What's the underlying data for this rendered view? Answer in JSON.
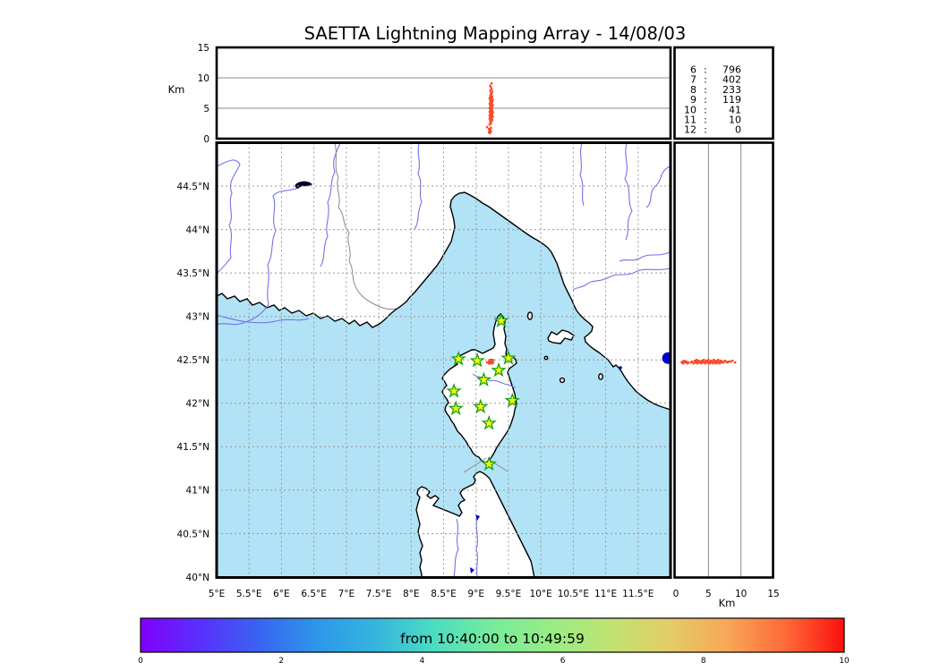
{
  "title": "SAETTA Lightning Mapping Array - 14/08/03",
  "colors": {
    "sea": "#b2e2f5",
    "land": "#ffffff",
    "coast": "#000000",
    "river": "#7373e8",
    "admin_border": "#8a8a8a",
    "grid_dashed": "#999999",
    "grid_solid": "#8c8c8c",
    "flash": "#f94a2b",
    "lake": "#0000cc",
    "star_fill": "#fdfd00",
    "star_edge": "#15a015",
    "highlight": "#e60000"
  },
  "altitude_panel": {
    "ylabel": "Km",
    "ticks": [
      {
        "v": 0,
        "label": "0"
      },
      {
        "v": 5,
        "label": "5"
      },
      {
        "v": 10,
        "label": "10"
      },
      {
        "v": 15,
        "label": "15"
      }
    ],
    "gridlines": [
      5,
      10
    ],
    "range": [
      0,
      15
    ]
  },
  "right_panel": {
    "xlabel": "Km",
    "ticks": [
      {
        "v": 0,
        "label": "0"
      },
      {
        "v": 5,
        "label": "5"
      },
      {
        "v": 10,
        "label": "10"
      },
      {
        "v": 15,
        "label": "15"
      }
    ],
    "gridlines": [
      5,
      10
    ],
    "range": [
      0,
      15
    ]
  },
  "stats": {
    "rows": [
      {
        "level": "6",
        "count": "796",
        "highlight": false
      },
      {
        "level": "7",
        "count": "402",
        "highlight": true
      },
      {
        "level": "8",
        "count": "233",
        "highlight": false
      },
      {
        "level": "9",
        "count": "119",
        "highlight": false
      },
      {
        "level": "10",
        "count": "41",
        "highlight": false
      },
      {
        "level": "11",
        "count": "10",
        "highlight": false
      },
      {
        "level": "12",
        "count": "0",
        "highlight": false
      }
    ]
  },
  "map": {
    "lon_range": [
      5,
      12
    ],
    "lat_range": [
      40,
      45
    ],
    "lon_ticks": [
      {
        "v": 5,
        "label": "5°E"
      },
      {
        "v": 5.5,
        "label": "5.5°E"
      },
      {
        "v": 6,
        "label": "6°E"
      },
      {
        "v": 6.5,
        "label": "6.5°E"
      },
      {
        "v": 7,
        "label": "7°E"
      },
      {
        "v": 7.5,
        "label": "7.5°E"
      },
      {
        "v": 8,
        "label": "8°E"
      },
      {
        "v": 8.5,
        "label": "8.5°E"
      },
      {
        "v": 9,
        "label": "9°E"
      },
      {
        "v": 9.5,
        "label": "9.5°E"
      },
      {
        "v": 10,
        "label": "10°E"
      },
      {
        "v": 10.5,
        "label": "10.5°E"
      },
      {
        "v": 11,
        "label": "11°E"
      },
      {
        "v": 11.5,
        "label": "11.5°E"
      }
    ],
    "lat_ticks": [
      {
        "v": 40,
        "label": "40°N"
      },
      {
        "v": 40.5,
        "label": "40.5°N"
      },
      {
        "v": 41,
        "label": "41°N"
      },
      {
        "v": 41.5,
        "label": "41.5°N"
      },
      {
        "v": 42,
        "label": "42°N"
      },
      {
        "v": 42.5,
        "label": "42.5°N"
      },
      {
        "v": 43,
        "label": "43°N"
      },
      {
        "v": 43.5,
        "label": "43.5°N"
      },
      {
        "v": 44,
        "label": "44°N"
      },
      {
        "v": 44.5,
        "label": "44.5°N"
      }
    ],
    "stations": [
      {
        "lon": 9.39,
        "lat": 42.95
      },
      {
        "lon": 8.73,
        "lat": 42.51
      },
      {
        "lon": 9.02,
        "lat": 42.49
      },
      {
        "lon": 9.5,
        "lat": 42.52
      },
      {
        "lon": 9.35,
        "lat": 42.38
      },
      {
        "lon": 9.12,
        "lat": 42.27
      },
      {
        "lon": 8.66,
        "lat": 42.14
      },
      {
        "lon": 9.56,
        "lat": 42.03
      },
      {
        "lon": 9.07,
        "lat": 41.96
      },
      {
        "lon": 8.69,
        "lat": 41.94
      },
      {
        "lon": 9.2,
        "lat": 41.77
      },
      {
        "lon": 9.2,
        "lat": 41.3
      }
    ],
    "lake": {
      "lon": 11.96,
      "lat": 42.52
    }
  },
  "lightning_points": [
    [
      9.21,
      42.47,
      2.3
    ],
    [
      9.23,
      42.48,
      2.5
    ],
    [
      9.22,
      42.46,
      2.7
    ],
    [
      9.24,
      42.49,
      2.9
    ],
    [
      9.22,
      42.47,
      3.0
    ],
    [
      9.25,
      42.48,
      3.1
    ],
    [
      9.23,
      42.5,
      3.2
    ],
    [
      9.21,
      42.46,
      3.3
    ],
    [
      9.24,
      42.47,
      3.4
    ],
    [
      9.22,
      42.49,
      3.5
    ],
    [
      9.26,
      42.48,
      3.6
    ],
    [
      9.23,
      42.47,
      3.7
    ],
    [
      9.21,
      42.48,
      3.8
    ],
    [
      9.25,
      42.46,
      3.9
    ],
    [
      9.23,
      42.49,
      4.0
    ],
    [
      9.22,
      42.47,
      4.1
    ],
    [
      9.24,
      42.48,
      4.2
    ],
    [
      9.26,
      42.5,
      4.3
    ],
    [
      9.21,
      42.47,
      4.4
    ],
    [
      9.23,
      42.46,
      4.5
    ],
    [
      9.25,
      42.48,
      4.6
    ],
    [
      9.22,
      42.49,
      4.7
    ],
    [
      9.24,
      42.47,
      4.8
    ],
    [
      9.23,
      42.48,
      4.9
    ],
    [
      9.21,
      42.5,
      5.0
    ],
    [
      9.25,
      42.47,
      5.1
    ],
    [
      9.23,
      42.46,
      5.2
    ],
    [
      9.22,
      42.48,
      5.3
    ],
    [
      9.24,
      42.49,
      5.4
    ],
    [
      9.26,
      42.47,
      5.5
    ],
    [
      9.23,
      42.48,
      5.6
    ],
    [
      9.21,
      42.46,
      5.7
    ],
    [
      9.24,
      42.5,
      5.8
    ],
    [
      9.22,
      42.47,
      5.9
    ],
    [
      9.25,
      42.48,
      6.0
    ],
    [
      9.23,
      42.49,
      6.1
    ],
    [
      9.22,
      42.46,
      6.2
    ],
    [
      9.24,
      42.48,
      6.3
    ],
    [
      9.26,
      42.47,
      6.4
    ],
    [
      9.23,
      42.5,
      6.5
    ],
    [
      9.21,
      42.48,
      6.6
    ],
    [
      9.24,
      42.46,
      6.7
    ],
    [
      9.22,
      42.48,
      6.8
    ],
    [
      9.25,
      42.49,
      6.9
    ],
    [
      9.23,
      42.47,
      7.0
    ],
    [
      9.22,
      42.48,
      7.1
    ],
    [
      9.24,
      42.47,
      7.3
    ],
    [
      9.23,
      42.49,
      7.5
    ],
    [
      9.25,
      42.48,
      7.7
    ],
    [
      9.22,
      42.47,
      7.9
    ],
    [
      9.24,
      42.48,
      8.1
    ],
    [
      9.23,
      42.48,
      8.4
    ],
    [
      9.22,
      42.49,
      8.7
    ],
    [
      9.24,
      42.47,
      9.1
    ],
    [
      9.21,
      42.47,
      0.9
    ],
    [
      9.22,
      42.48,
      1.0
    ],
    [
      9.2,
      42.46,
      1.1
    ],
    [
      9.23,
      42.47,
      1.2
    ],
    [
      9.21,
      42.49,
      1.3
    ],
    [
      9.22,
      42.47,
      1.5
    ],
    [
      9.2,
      42.48,
      1.6
    ],
    [
      9.23,
      42.46,
      1.8
    ],
    [
      9.17,
      42.47,
      1.9
    ]
  ],
  "colorbar": {
    "label": "from 10:40:00 to 10:49:59",
    "ticks": [
      {
        "v": 0,
        "label": "0"
      },
      {
        "v": 2,
        "label": "2"
      },
      {
        "v": 4,
        "label": "4"
      },
      {
        "v": 6,
        "label": "6"
      },
      {
        "v": 8,
        "label": "8"
      },
      {
        "v": 10,
        "label": "10"
      }
    ],
    "range": [
      0,
      10
    ],
    "gradient": [
      "#8000fb",
      "#5a2ffc",
      "#3a63f2",
      "#2d96e9",
      "#35b5de",
      "#4cdcc1",
      "#77eb9b",
      "#97ed85",
      "#c0e272",
      "#e3cd66",
      "#f8a758",
      "#fe6a38",
      "#fb0f0e"
    ]
  }
}
